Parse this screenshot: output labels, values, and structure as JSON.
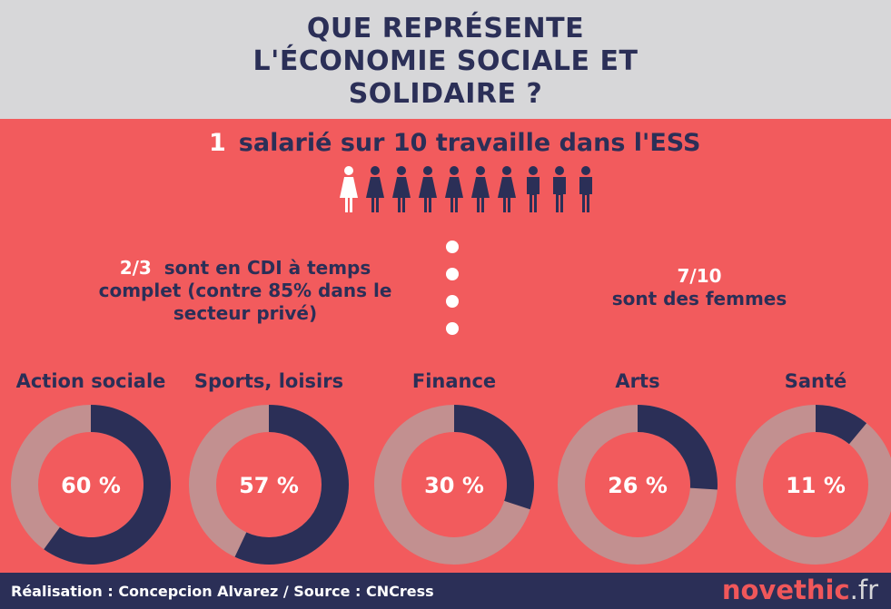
{
  "header": {
    "title_lines": [
      "QUE REPRÉSENTE",
      "L'ÉCONOMIE SOCIALE ET",
      "SOLIDAIRE ?"
    ]
  },
  "headline": {
    "number": "1",
    "text": "salarié sur 10 travaille dans l'ESS"
  },
  "people": {
    "total": 10,
    "highlighted": 1,
    "women_icons": 7,
    "icon": "person-icon"
  },
  "stats": {
    "cdi": {
      "highlight": "2/3",
      "line1": "sont en CDI à temps",
      "line2": "complet (contre 85% dans le",
      "line3": "secteur privé)"
    },
    "women": {
      "highlight": "7/10",
      "text": "sont des femmes"
    }
  },
  "colors": {
    "background": "#f25b5d",
    "header": "#d7d7d9",
    "navy": "#2b2f57",
    "ring_rest": "#c29090",
    "white": "#ffffff"
  },
  "chart_data": {
    "type": "pie",
    "variant": "donut",
    "categories": [
      "Action sociale",
      "Sports, loisirs",
      "Finance",
      "Arts",
      "Santé"
    ],
    "values": [
      60,
      57,
      30,
      26,
      11
    ],
    "labels": [
      "60 %",
      "57 %",
      "30 %",
      "26 %",
      "11 %"
    ]
  },
  "footer": {
    "credit": "Réalisation : Concepcion Alvarez / Source : CNCress",
    "brand_a": "novethic",
    "brand_b": ".fr"
  }
}
